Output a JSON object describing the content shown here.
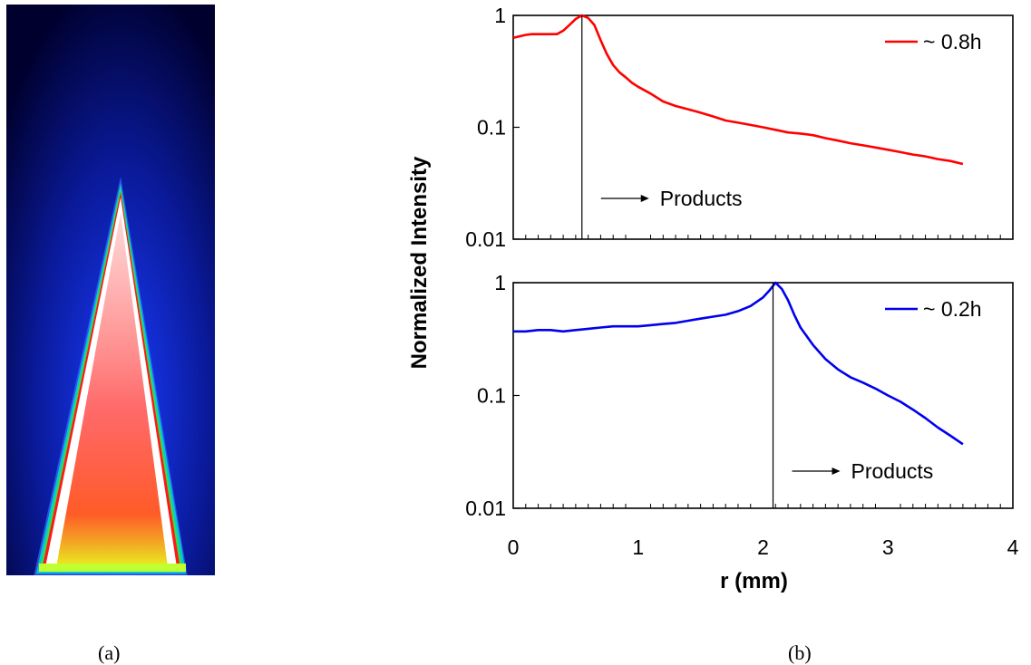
{
  "figure": {
    "caption_a": "(a)",
    "caption_b": "(b)",
    "ylabel": "Normalized Intensity",
    "xlabel": "r (mm)"
  },
  "flame_image": {
    "description_colors": {
      "background": "#00002e",
      "outer": "#1a3cff",
      "ring": "#00e060",
      "edge": "#ff2020",
      "inner": "#ffffff",
      "core": "#ff3030",
      "base": "#e8f020"
    }
  },
  "chart_data": [
    {
      "type": "line",
      "scale": "log",
      "xlim": [
        0,
        4
      ],
      "ylim": [
        0.01,
        1
      ],
      "y_ticks": [
        "1",
        "0.1",
        "0.01"
      ],
      "x_ticks": [],
      "series": [
        {
          "name": "~ 0.8h",
          "color": "#ff0000",
          "x": [
            0,
            0.05,
            0.1,
            0.15,
            0.2,
            0.25,
            0.3,
            0.35,
            0.4,
            0.45,
            0.5,
            0.55,
            0.6,
            0.65,
            0.7,
            0.75,
            0.8,
            0.85,
            0.9,
            0.95,
            1.0,
            1.1,
            1.2,
            1.3,
            1.4,
            1.5,
            1.6,
            1.7,
            1.8,
            1.9,
            2.0,
            2.1,
            2.2,
            2.3,
            2.4,
            2.5,
            2.6,
            2.7,
            2.8,
            2.9,
            3.0,
            3.1,
            3.2,
            3.3,
            3.4,
            3.5,
            3.6
          ],
          "y": [
            0.63,
            0.65,
            0.67,
            0.68,
            0.68,
            0.68,
            0.68,
            0.68,
            0.73,
            0.82,
            0.93,
            1.0,
            0.95,
            0.82,
            0.6,
            0.45,
            0.36,
            0.31,
            0.28,
            0.25,
            0.23,
            0.2,
            0.17,
            0.155,
            0.145,
            0.135,
            0.125,
            0.115,
            0.11,
            0.105,
            0.1,
            0.095,
            0.09,
            0.088,
            0.085,
            0.08,
            0.076,
            0.072,
            0.069,
            0.066,
            0.063,
            0.06,
            0.057,
            0.055,
            0.052,
            0.05,
            0.047
          ]
        }
      ],
      "annotation": {
        "text": "Products",
        "marker_x": 0.55
      }
    },
    {
      "type": "line",
      "scale": "log",
      "xlim": [
        0,
        4
      ],
      "ylim": [
        0.01,
        1
      ],
      "y_ticks": [
        "1",
        "0.1",
        "0.01"
      ],
      "x_ticks": [
        "0",
        "1",
        "2",
        "3",
        "4"
      ],
      "series": [
        {
          "name": "~ 0.2h",
          "color": "#0000ee",
          "x": [
            0,
            0.1,
            0.2,
            0.3,
            0.4,
            0.5,
            0.6,
            0.7,
            0.8,
            0.9,
            1.0,
            1.1,
            1.2,
            1.3,
            1.4,
            1.5,
            1.6,
            1.7,
            1.8,
            1.9,
            2.0,
            2.05,
            2.1,
            2.15,
            2.2,
            2.25,
            2.3,
            2.4,
            2.5,
            2.6,
            2.7,
            2.8,
            2.9,
            3.0,
            3.1,
            3.2,
            3.3,
            3.4,
            3.5,
            3.6
          ],
          "y": [
            0.37,
            0.37,
            0.38,
            0.38,
            0.37,
            0.38,
            0.39,
            0.4,
            0.41,
            0.41,
            0.41,
            0.42,
            0.43,
            0.44,
            0.46,
            0.48,
            0.5,
            0.52,
            0.56,
            0.62,
            0.74,
            0.85,
            1.0,
            0.88,
            0.7,
            0.52,
            0.4,
            0.28,
            0.21,
            0.17,
            0.145,
            0.13,
            0.115,
            0.1,
            0.088,
            0.075,
            0.063,
            0.052,
            0.044,
            0.037
          ]
        }
      ],
      "annotation": {
        "text": "Products",
        "marker_x": 2.08
      }
    }
  ]
}
